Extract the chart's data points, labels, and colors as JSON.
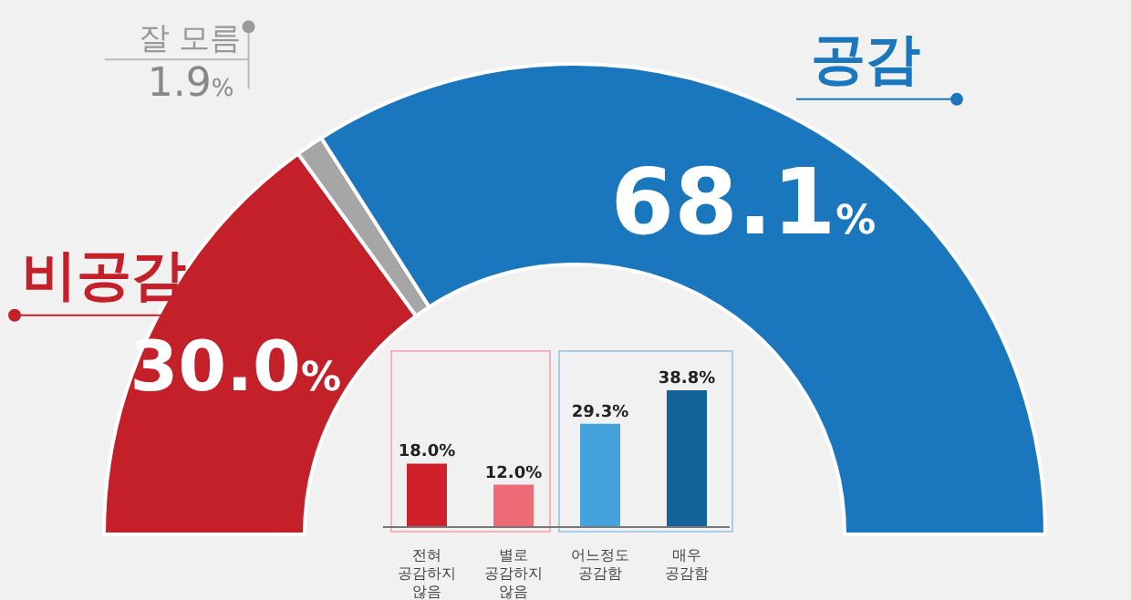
{
  "chart_data": [
    {
      "type": "donut",
      "categories": [
        "비공감",
        "잘 모름",
        "공감"
      ],
      "values": [
        30.0,
        1.9,
        68.1
      ],
      "colors": [
        "#c4202a",
        "#a6a6a6",
        "#1a76bd"
      ],
      "value_labels": [
        "30.0%",
        "1.9%",
        "68.1%"
      ]
    },
    {
      "type": "bar",
      "categories": [
        "전혀 공감하지 않음",
        "별로 공감하지 않음",
        "어느정도 공감함",
        "매우 공감함"
      ],
      "values": [
        18.0,
        12.0,
        29.3,
        38.8
      ],
      "colors": [
        "#d0202c",
        "#ee6c78",
        "#44a3dc",
        "#14629a"
      ],
      "value_labels": [
        "18.0%",
        "12.0%",
        "29.3%",
        "38.8%"
      ]
    }
  ]
}
